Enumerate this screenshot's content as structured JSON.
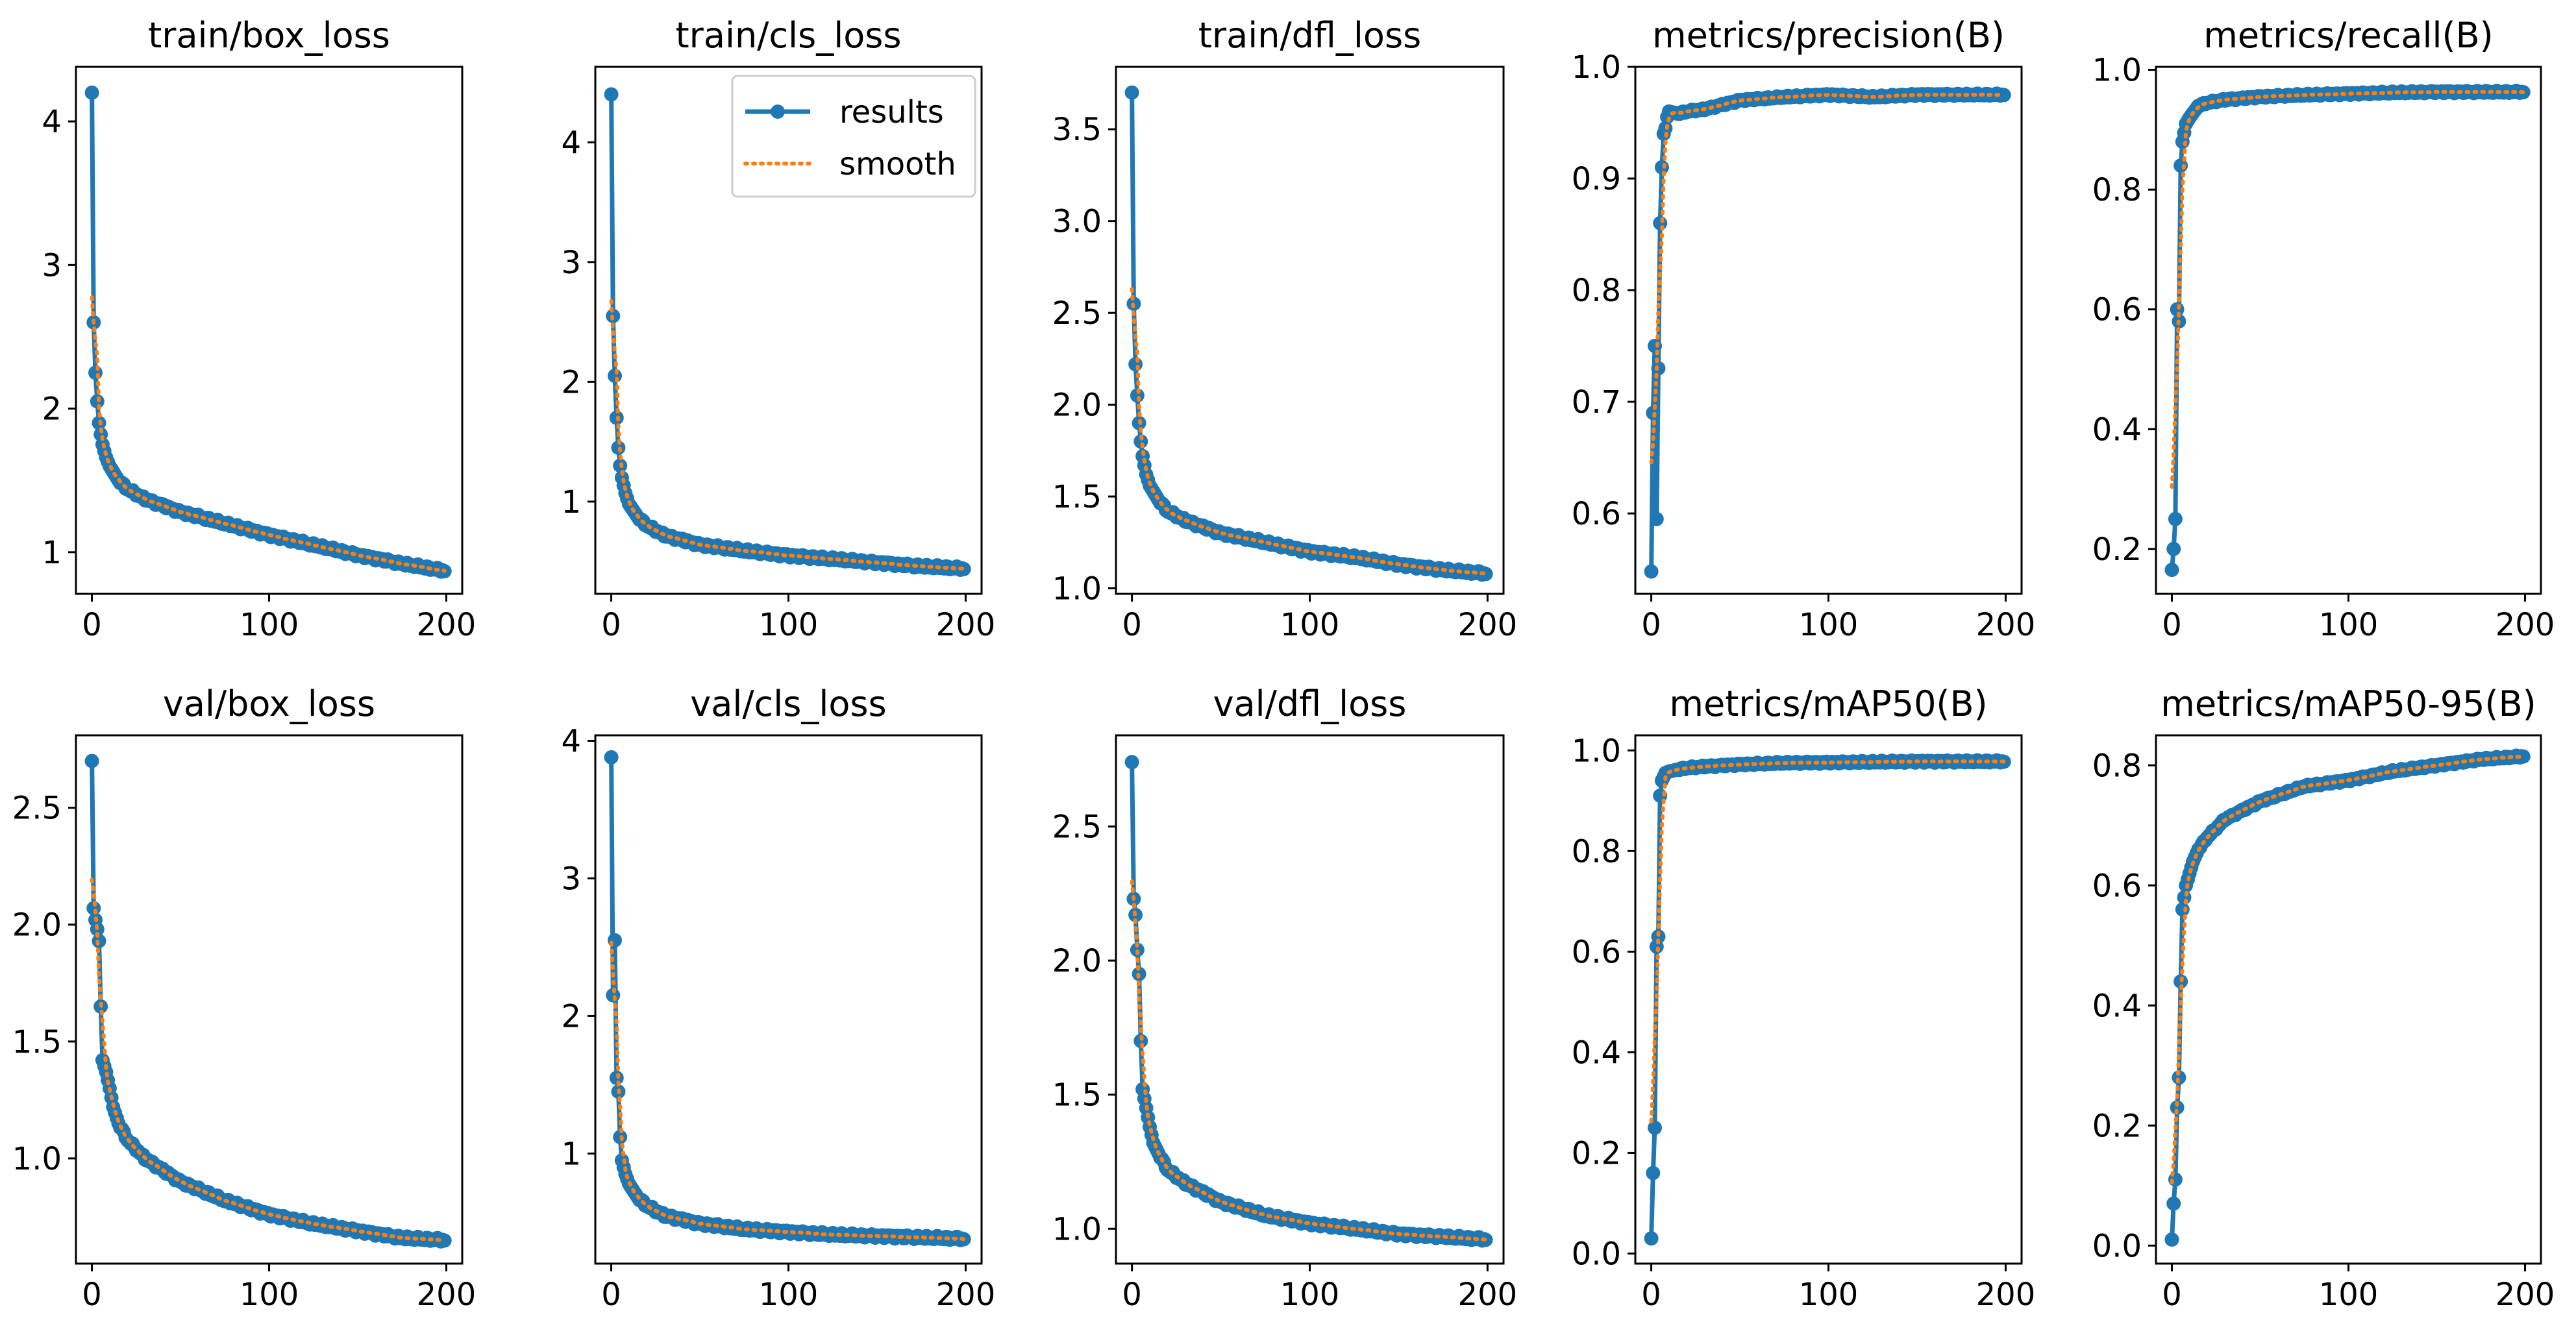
{
  "colors": {
    "results": "#1f77b4",
    "smooth": "#ff7f0e",
    "axis": "#000000"
  },
  "legend": {
    "results_label": "results",
    "smooth_label": "smooth",
    "placement": "upper-right of train/cls_loss"
  },
  "chart_data": [
    {
      "type": "line",
      "title": "train/box_loss",
      "xlim": [
        -9,
        209
      ],
      "ylim": [
        0.71,
        4.38
      ],
      "xticks": [
        0,
        100,
        200
      ],
      "yticks": [
        1,
        2,
        3,
        4
      ],
      "ytick_labels": [
        "1",
        "2",
        "3",
        "4"
      ],
      "shape": "decay",
      "knots": [
        [
          0,
          4.2
        ],
        [
          1,
          2.6
        ],
        [
          2,
          2.25
        ],
        [
          3,
          2.05
        ],
        [
          4,
          1.9
        ],
        [
          5,
          1.82
        ],
        [
          6,
          1.75
        ],
        [
          8,
          1.66
        ],
        [
          10,
          1.6
        ],
        [
          15,
          1.5
        ],
        [
          20,
          1.44
        ],
        [
          30,
          1.37
        ],
        [
          50,
          1.28
        ],
        [
          75,
          1.2
        ],
        [
          100,
          1.12
        ],
        [
          125,
          1.05
        ],
        [
          150,
          0.98
        ],
        [
          175,
          0.92
        ],
        [
          199,
          0.87
        ]
      ]
    },
    {
      "type": "line",
      "title": "train/cls_loss",
      "xlim": [
        -9,
        209
      ],
      "ylim": [
        0.23,
        4.63
      ],
      "xticks": [
        0,
        100,
        200
      ],
      "yticks": [
        1,
        2,
        3,
        4
      ],
      "ytick_labels": [
        "1",
        "2",
        "3",
        "4"
      ],
      "shape": "decay",
      "legend": true,
      "knots": [
        [
          0,
          4.4
        ],
        [
          1,
          2.55
        ],
        [
          2,
          2.05
        ],
        [
          3,
          1.7
        ],
        [
          4,
          1.45
        ],
        [
          5,
          1.3
        ],
        [
          6,
          1.2
        ],
        [
          8,
          1.07
        ],
        [
          10,
          0.98
        ],
        [
          15,
          0.87
        ],
        [
          20,
          0.8
        ],
        [
          30,
          0.72
        ],
        [
          50,
          0.64
        ],
        [
          75,
          0.59
        ],
        [
          100,
          0.55
        ],
        [
          125,
          0.52
        ],
        [
          150,
          0.49
        ],
        [
          175,
          0.46
        ],
        [
          199,
          0.44
        ]
      ]
    },
    {
      "type": "line",
      "title": "train/dfl_loss",
      "xlim": [
        -9,
        209
      ],
      "ylim": [
        0.97,
        3.84
      ],
      "xticks": [
        0,
        100,
        200
      ],
      "yticks": [
        1.0,
        1.5,
        2.0,
        2.5,
        3.0,
        3.5
      ],
      "ytick_labels": [
        "1.0",
        "1.5",
        "2.0",
        "2.5",
        "3.0",
        "3.5"
      ],
      "shape": "decay",
      "knots": [
        [
          0,
          3.7
        ],
        [
          1,
          2.55
        ],
        [
          2,
          2.22
        ],
        [
          3,
          2.05
        ],
        [
          4,
          1.9
        ],
        [
          5,
          1.8
        ],
        [
          6,
          1.72
        ],
        [
          8,
          1.62
        ],
        [
          10,
          1.56
        ],
        [
          15,
          1.48
        ],
        [
          20,
          1.42
        ],
        [
          30,
          1.37
        ],
        [
          50,
          1.3
        ],
        [
          75,
          1.25
        ],
        [
          100,
          1.2
        ],
        [
          125,
          1.17
        ],
        [
          150,
          1.13
        ],
        [
          175,
          1.1
        ],
        [
          199,
          1.08
        ]
      ]
    },
    {
      "type": "line",
      "title": "metrics/precision(B)",
      "xlim": [
        -9,
        209
      ],
      "ylim": [
        0.528,
        1.0
      ],
      "xticks": [
        0,
        100,
        200
      ],
      "yticks": [
        0.6,
        0.7,
        0.8,
        0.9,
        1.0
      ],
      "ytick_labels": [
        "0.6",
        "0.7",
        "0.8",
        "0.9",
        "1.0"
      ],
      "shape": "rise",
      "knots": [
        [
          0,
          0.548
        ],
        [
          1,
          0.69
        ],
        [
          2,
          0.75
        ],
        [
          3,
          0.595
        ],
        [
          4,
          0.73
        ],
        [
          5,
          0.86
        ],
        [
          6,
          0.91
        ],
        [
          7,
          0.94
        ],
        [
          8,
          0.945
        ],
        [
          9,
          0.955
        ],
        [
          10,
          0.96
        ],
        [
          15,
          0.958
        ],
        [
          20,
          0.96
        ],
        [
          30,
          0.962
        ],
        [
          50,
          0.97
        ],
        [
          75,
          0.973
        ],
        [
          100,
          0.975
        ],
        [
          125,
          0.973
        ],
        [
          150,
          0.975
        ],
        [
          175,
          0.975
        ],
        [
          199,
          0.975
        ]
      ]
    },
    {
      "type": "line",
      "title": "metrics/recall(B)",
      "xlim": [
        -9,
        209
      ],
      "ylim": [
        0.125,
        1.005
      ],
      "xticks": [
        0,
        100,
        200
      ],
      "yticks": [
        0.2,
        0.4,
        0.6,
        0.8,
        1.0
      ],
      "ytick_labels": [
        "0.2",
        "0.4",
        "0.6",
        "0.8",
        "1.0"
      ],
      "shape": "rise",
      "knots": [
        [
          0,
          0.165
        ],
        [
          1,
          0.2
        ],
        [
          2,
          0.25
        ],
        [
          3,
          0.6
        ],
        [
          4,
          0.58
        ],
        [
          5,
          0.84
        ],
        [
          6,
          0.88
        ],
        [
          8,
          0.91
        ],
        [
          10,
          0.92
        ],
        [
          15,
          0.94
        ],
        [
          20,
          0.945
        ],
        [
          30,
          0.95
        ],
        [
          50,
          0.955
        ],
        [
          75,
          0.958
        ],
        [
          100,
          0.96
        ],
        [
          125,
          0.962
        ],
        [
          150,
          0.963
        ],
        [
          175,
          0.963
        ],
        [
          199,
          0.963
        ]
      ]
    },
    {
      "type": "line",
      "title": "val/box_loss",
      "xlim": [
        -9,
        209
      ],
      "ylim": [
        0.55,
        2.81
      ],
      "xticks": [
        0,
        100,
        200
      ],
      "yticks": [
        1.0,
        1.5,
        2.0,
        2.5
      ],
      "ytick_labels": [
        "1.0",
        "1.5",
        "2.0",
        "2.5"
      ],
      "shape": "decay",
      "knots": [
        [
          0,
          2.7
        ],
        [
          1,
          2.07
        ],
        [
          2,
          2.02
        ],
        [
          3,
          1.98
        ],
        [
          4,
          1.93
        ],
        [
          5,
          1.65
        ],
        [
          6,
          1.42
        ],
        [
          8,
          1.37
        ],
        [
          10,
          1.3
        ],
        [
          12,
          1.22
        ],
        [
          15,
          1.15
        ],
        [
          20,
          1.08
        ],
        [
          30,
          1.0
        ],
        [
          50,
          0.9
        ],
        [
          75,
          0.82
        ],
        [
          100,
          0.76
        ],
        [
          125,
          0.72
        ],
        [
          150,
          0.69
        ],
        [
          175,
          0.66
        ],
        [
          199,
          0.65
        ]
      ]
    },
    {
      "type": "line",
      "title": "val/cls_loss",
      "xlim": [
        -9,
        209
      ],
      "ylim": [
        0.2,
        4.04
      ],
      "xticks": [
        0,
        100,
        200
      ],
      "yticks": [
        1,
        2,
        3,
        4
      ],
      "ytick_labels": [
        "1",
        "2",
        "3",
        "4"
      ],
      "shape": "decay",
      "knots": [
        [
          0,
          3.88
        ],
        [
          1,
          2.15
        ],
        [
          2,
          2.55
        ],
        [
          3,
          1.55
        ],
        [
          4,
          1.45
        ],
        [
          5,
          1.12
        ],
        [
          6,
          0.95
        ],
        [
          8,
          0.85
        ],
        [
          10,
          0.78
        ],
        [
          15,
          0.68
        ],
        [
          20,
          0.62
        ],
        [
          30,
          0.55
        ],
        [
          50,
          0.49
        ],
        [
          75,
          0.45
        ],
        [
          100,
          0.43
        ],
        [
          125,
          0.41
        ],
        [
          150,
          0.4
        ],
        [
          175,
          0.39
        ],
        [
          199,
          0.38
        ]
      ]
    },
    {
      "type": "line",
      "title": "val/dfl_loss",
      "xlim": [
        -9,
        209
      ],
      "ylim": [
        0.87,
        2.84
      ],
      "xticks": [
        0,
        100,
        200
      ],
      "yticks": [
        1.0,
        1.5,
        2.0,
        2.5
      ],
      "ytick_labels": [
        "1.0",
        "1.5",
        "2.0",
        "2.5"
      ],
      "shape": "decay",
      "knots": [
        [
          0,
          2.74
        ],
        [
          1,
          2.23
        ],
        [
          2,
          2.17
        ],
        [
          3,
          2.04
        ],
        [
          4,
          1.95
        ],
        [
          5,
          1.7
        ],
        [
          6,
          1.52
        ],
        [
          8,
          1.45
        ],
        [
          10,
          1.38
        ],
        [
          12,
          1.32
        ],
        [
          15,
          1.28
        ],
        [
          20,
          1.22
        ],
        [
          30,
          1.17
        ],
        [
          50,
          1.1
        ],
        [
          75,
          1.05
        ],
        [
          100,
          1.02
        ],
        [
          125,
          1.0
        ],
        [
          150,
          0.98
        ],
        [
          175,
          0.97
        ],
        [
          199,
          0.96
        ]
      ]
    },
    {
      "type": "line",
      "title": "metrics/mAP50(B)",
      "xlim": [
        -9,
        209
      ],
      "ylim": [
        -0.02,
        1.03
      ],
      "xticks": [
        0,
        100,
        200
      ],
      "yticks": [
        0.0,
        0.2,
        0.4,
        0.6,
        0.8,
        1.0
      ],
      "ytick_labels": [
        "0.0",
        "0.2",
        "0.4",
        "0.6",
        "0.8",
        "1.0"
      ],
      "shape": "rise",
      "knots": [
        [
          0,
          0.03
        ],
        [
          1,
          0.16
        ],
        [
          2,
          0.25
        ],
        [
          3,
          0.61
        ],
        [
          4,
          0.63
        ],
        [
          5,
          0.91
        ],
        [
          6,
          0.94
        ],
        [
          8,
          0.955
        ],
        [
          10,
          0.958
        ],
        [
          15,
          0.962
        ],
        [
          20,
          0.965
        ],
        [
          30,
          0.968
        ],
        [
          50,
          0.972
        ],
        [
          75,
          0.975
        ],
        [
          100,
          0.976
        ],
        [
          125,
          0.977
        ],
        [
          150,
          0.978
        ],
        [
          175,
          0.978
        ],
        [
          199,
          0.978
        ]
      ]
    },
    {
      "type": "line",
      "title": "metrics/mAP50-95(B)",
      "xlim": [
        -9,
        209
      ],
      "ylim": [
        -0.03,
        0.85
      ],
      "xticks": [
        0,
        100,
        200
      ],
      "yticks": [
        0.0,
        0.2,
        0.4,
        0.6,
        0.8
      ],
      "ytick_labels": [
        "0.0",
        "0.2",
        "0.4",
        "0.6",
        "0.8"
      ],
      "shape": "rise",
      "knots": [
        [
          0,
          0.01
        ],
        [
          1,
          0.07
        ],
        [
          2,
          0.11
        ],
        [
          3,
          0.23
        ],
        [
          4,
          0.28
        ],
        [
          5,
          0.44
        ],
        [
          6,
          0.56
        ],
        [
          8,
          0.6
        ],
        [
          10,
          0.62
        ],
        [
          12,
          0.64
        ],
        [
          15,
          0.66
        ],
        [
          20,
          0.68
        ],
        [
          30,
          0.71
        ],
        [
          50,
          0.74
        ],
        [
          75,
          0.765
        ],
        [
          100,
          0.775
        ],
        [
          125,
          0.79
        ],
        [
          150,
          0.8
        ],
        [
          175,
          0.81
        ],
        [
          199,
          0.815
        ]
      ]
    }
  ]
}
